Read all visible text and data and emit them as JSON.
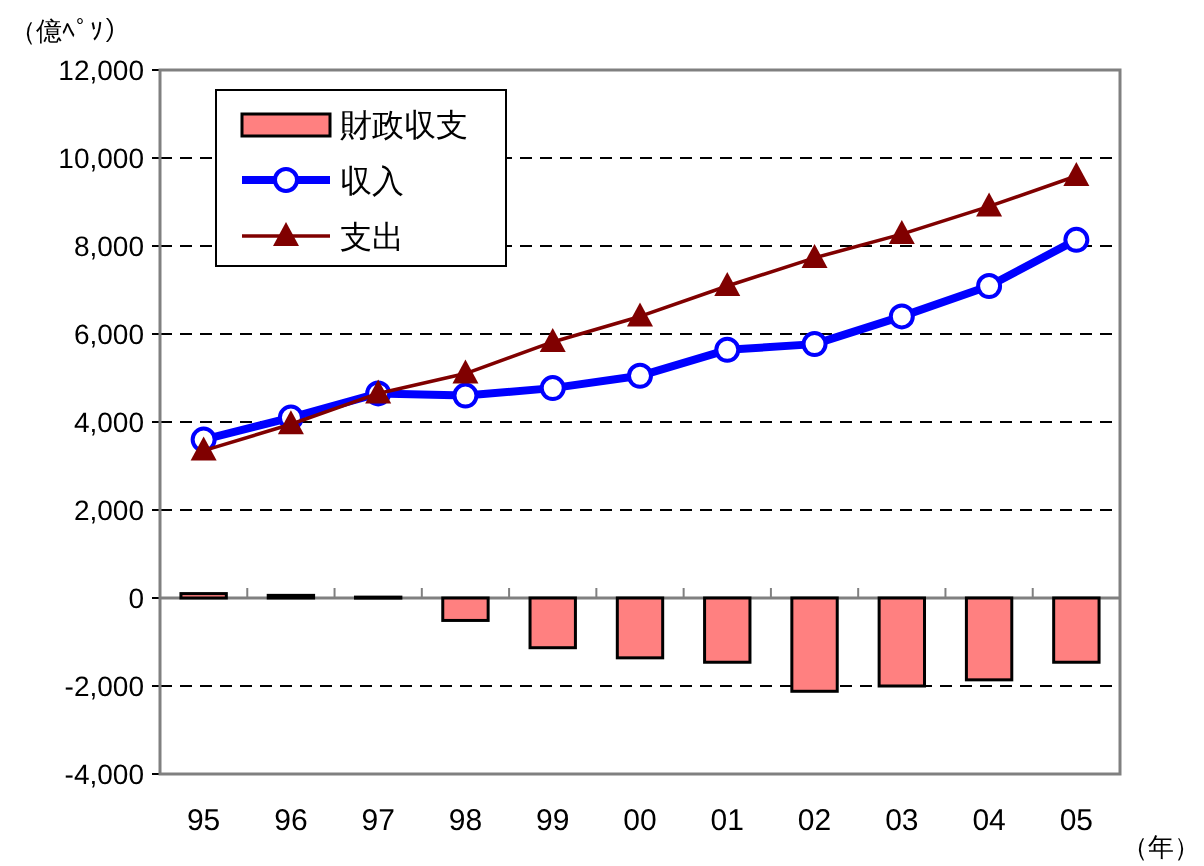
{
  "chart_data": {
    "type": "bar",
    "ylabel": "（億ﾍﾟｿ）",
    "xlabel": "（年）",
    "categories": [
      "95",
      "96",
      "97",
      "98",
      "99",
      "00",
      "01",
      "02",
      "03",
      "04",
      "05"
    ],
    "series": [
      {
        "name": "財政収支",
        "color": "#ff8080",
        "values": [
          100,
          60,
          20,
          -510,
          -1130,
          -1360,
          -1460,
          -2120,
          -2000,
          -1860,
          -1460
        ]
      },
      {
        "name": "収入",
        "type": "line",
        "color": "#0000ff",
        "marker": "circle",
        "values": [
          3600,
          4100,
          4650,
          4600,
          4770,
          5050,
          5640,
          5770,
          6400,
          7090,
          8140
        ]
      },
      {
        "name": "支出",
        "type": "line",
        "color": "#800000",
        "marker": "triangle",
        "values": [
          3350,
          3950,
          4650,
          5100,
          5820,
          6400,
          7090,
          7730,
          8270,
          8900,
          9590
        ]
      }
    ],
    "ylim": [
      -4000,
      12000
    ],
    "yticks": [
      {
        "value": -4000,
        "label": "-4,000"
      },
      {
        "value": -2000,
        "label": "-2,000"
      },
      0,
      {
        "value": 2000,
        "label": "2,000"
      },
      {
        "value": 4000,
        "label": "4,000"
      },
      {
        "value": 6000,
        "label": "6,000"
      },
      {
        "value": 8000,
        "label": "8,000"
      },
      {
        "value": 10000,
        "label": "10,000"
      },
      {
        "value": 12000,
        "label": "12,000"
      }
    ],
    "grid": "y",
    "legend": "top left"
  }
}
